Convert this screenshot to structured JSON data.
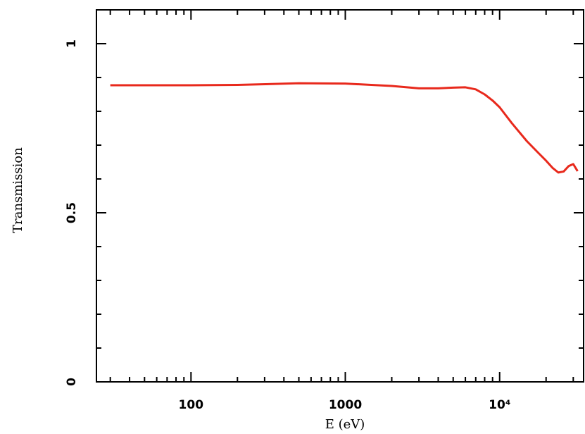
{
  "chart_data": {
    "type": "line",
    "xlabel": "E (eV)",
    "ylabel": "Transmission",
    "xscale": "log",
    "xlim": [
      24.4,
      35000
    ],
    "ylim": [
      0,
      1.1
    ],
    "xticks": [
      100,
      1000,
      {
        "value": 10000,
        "label": "10⁴"
      }
    ],
    "xminorticks": [
      30,
      40,
      50,
      60,
      70,
      80,
      90,
      200,
      300,
      400,
      500,
      600,
      700,
      800,
      900,
      2000,
      3000,
      4000,
      5000,
      6000,
      7000,
      8000,
      9000,
      20000,
      30000
    ],
    "yticks": [
      0,
      0.5,
      1
    ],
    "yminorticks": [
      0.1,
      0.2,
      0.3,
      0.4,
      0.6,
      0.7,
      0.8,
      0.9
    ],
    "series": [
      {
        "color": "#e8291c",
        "x": [
          30,
          50,
          100,
          200,
          500,
          1000,
          2000,
          3000,
          4000,
          5000,
          6000,
          7000,
          8000,
          9000,
          10000,
          12000,
          15000,
          18000,
          20000,
          22000,
          24000,
          26000,
          28000,
          30000,
          32000
        ],
        "values": [
          0.877,
          0.877,
          0.877,
          0.878,
          0.883,
          0.882,
          0.875,
          0.868,
          0.868,
          0.87,
          0.871,
          0.865,
          0.85,
          0.832,
          0.812,
          0.765,
          0.712,
          0.675,
          0.654,
          0.633,
          0.619,
          0.622,
          0.638,
          0.644,
          0.623
        ]
      }
    ]
  }
}
